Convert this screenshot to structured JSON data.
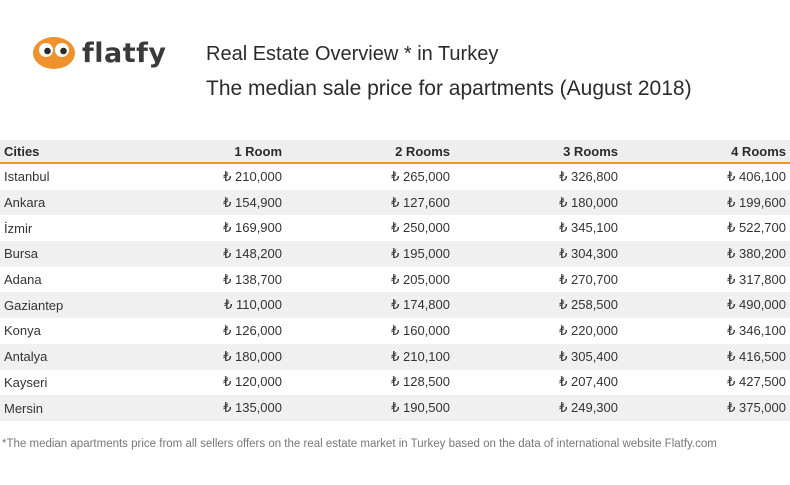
{
  "brand": {
    "name": "flatfy",
    "color": "#f0922b"
  },
  "header": {
    "title": "Real Estate Overview * in Turkey",
    "subtitle": "The median sale price for apartments (August 2018)"
  },
  "chart_data": {
    "type": "table",
    "title": "Real Estate Overview * in Turkey",
    "subtitle": "The median sale price for apartments (August 2018)",
    "columns": [
      "Cities",
      "1 Room",
      "2 Rooms",
      "3 Rooms",
      "4 Rooms"
    ],
    "rows": [
      [
        "Istanbul",
        "₺ 210,000",
        "₺ 265,000",
        "₺ 326,800",
        "₺ 406,100"
      ],
      [
        "Ankara",
        "₺ 154,900",
        "₺ 127,600",
        "₺ 180,000",
        "₺ 199,600"
      ],
      [
        "İzmir",
        "₺ 169,900",
        "₺ 250,000",
        "₺ 345,100",
        "₺ 522,700"
      ],
      [
        "Bursa",
        "₺ 148,200",
        "₺ 195,000",
        "₺ 304,300",
        "₺ 380,200"
      ],
      [
        "Adana",
        "₺ 138,700",
        "₺ 205,000",
        "₺ 270,700",
        "₺ 317,800"
      ],
      [
        "Gaziantep",
        "₺ 110,000",
        "₺ 174,800",
        "₺ 258,500",
        "₺ 490,000"
      ],
      [
        "Konya",
        "₺ 126,000",
        "₺ 160,000",
        "₺ 220,000",
        "₺ 346,100"
      ],
      [
        "Antalya",
        "₺ 180,000",
        "₺ 210,100",
        "₺ 305,400",
        "₺ 416,500"
      ],
      [
        "Kayseri",
        "₺ 120,000",
        "₺ 128,500",
        "₺ 207,400",
        "₺ 427,500"
      ],
      [
        "Mersin",
        "₺ 135,000",
        "₺ 190,500",
        "₺ 249,300",
        "₺ 375,000"
      ]
    ]
  },
  "footnote": "*The median apartments price from all sellers offers on the real estate market in Turkey based on the data of international website Flatfy.com"
}
